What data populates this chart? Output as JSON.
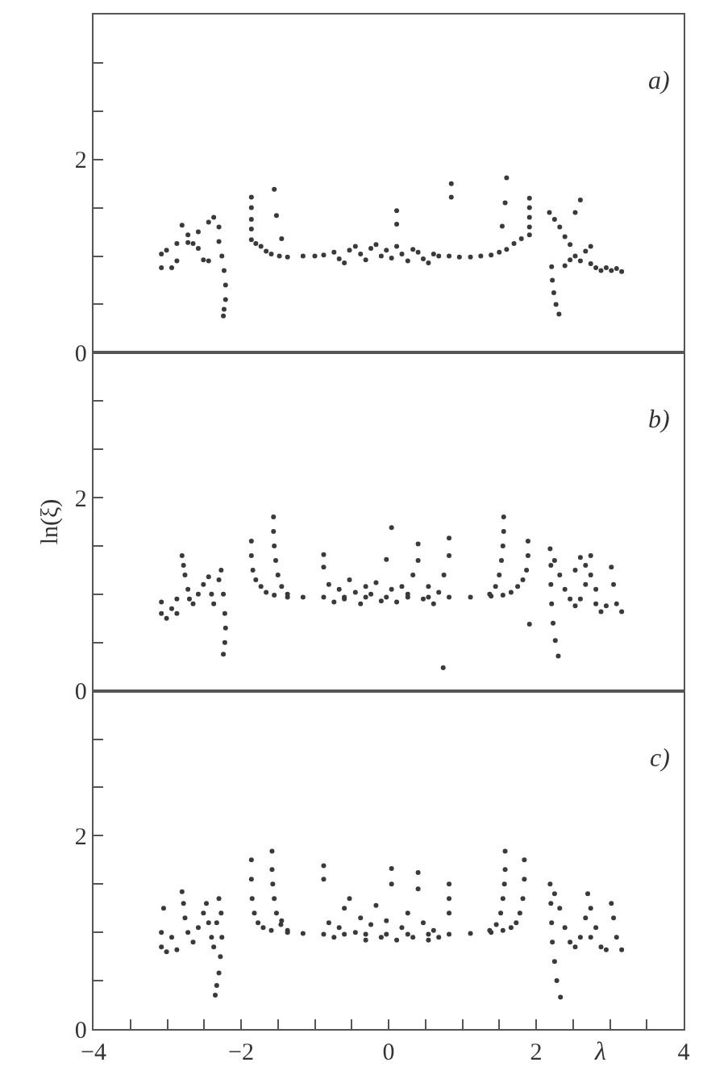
{
  "chart_data": [
    {
      "type": "scatter",
      "color": "#3a3a3a",
      "marker": "circle",
      "annotations": [
        "a)"
      ],
      "xlim": [
        -4,
        4
      ],
      "ylim": [
        0,
        3.5
      ],
      "tick_labels": "y",
      "yticks": [
        0,
        {
          "value": 0.5,
          "label": null
        },
        {
          "value": 1,
          "label": null
        },
        {
          "value": 1.5,
          "label": null
        },
        2,
        {
          "value": 2.5,
          "label": null
        },
        {
          "value": 3,
          "label": null
        }
      ],
      "x": [
        -3.08,
        -3.08,
        -3.01,
        -2.94,
        -2.87,
        -2.87,
        -2.8,
        -2.72,
        -2.72,
        -2.65,
        -2.58,
        -2.58,
        -2.51,
        -2.44,
        -2.44,
        -2.37,
        -2.3,
        -2.3,
        -2.26,
        -2.23,
        -2.21,
        -2.21,
        -2.23,
        -2.24,
        -1.86,
        -1.86,
        -1.86,
        -1.86,
        -1.86,
        -1.8,
        -1.73,
        -1.66,
        -1.59,
        -1.48,
        -1.37,
        -1.16,
        -1.0,
        -0.88,
        -0.74,
        -0.67,
        -0.6,
        -0.53,
        -0.45,
        -0.38,
        -0.31,
        -0.24,
        -0.17,
        -0.1,
        -0.03,
        0.04,
        0.11,
        0.18,
        0.26,
        0.33,
        0.4,
        0.47,
        0.54,
        0.61,
        0.68,
        0.82,
        0.96,
        1.11,
        1.25,
        1.39,
        1.5,
        1.6,
        1.7,
        1.8,
        1.91,
        1.91,
        1.91,
        1.91,
        1.91,
        -1.55,
        -1.52,
        -1.45,
        0.11,
        0.11,
        0.85,
        0.85,
        1.6,
        1.58,
        1.54,
        2.21,
        2.22,
        2.24,
        2.27,
        2.31,
        2.18,
        2.25,
        2.32,
        2.39,
        2.46,
        2.53,
        2.6,
        2.67,
        2.6,
        2.53,
        2.74,
        2.74,
        2.81,
        2.88,
        2.95,
        3.02,
        3.09,
        3.16,
        2.39,
        2.46
      ],
      "values": [
        1.02,
        0.88,
        1.06,
        0.88,
        0.95,
        1.13,
        1.32,
        1.14,
        1.22,
        1.13,
        1.25,
        1.08,
        0.96,
        0.95,
        1.35,
        1.4,
        1.3,
        1.15,
        1.0,
        0.85,
        0.7,
        0.55,
        0.45,
        0.38,
        1.61,
        1.5,
        1.38,
        1.28,
        1.17,
        1.13,
        1.1,
        1.05,
        1.02,
        1.0,
        0.99,
        1.0,
        1.0,
        1.01,
        1.04,
        0.97,
        0.93,
        1.06,
        1.1,
        1.02,
        0.96,
        1.08,
        1.12,
        1.0,
        1.06,
        0.98,
        1.1,
        1.02,
        0.95,
        1.07,
        1.04,
        0.97,
        0.93,
        1.02,
        1.0,
        1.0,
        0.99,
        0.99,
        1.0,
        1.01,
        1.04,
        1.07,
        1.13,
        1.18,
        1.22,
        1.3,
        1.4,
        1.5,
        1.6,
        1.69,
        1.42,
        1.18,
        1.47,
        1.33,
        1.75,
        1.61,
        1.81,
        1.55,
        1.31,
        0.89,
        0.75,
        0.62,
        0.5,
        0.4,
        1.45,
        1.38,
        1.3,
        1.2,
        1.12,
        1.0,
        0.95,
        1.05,
        1.58,
        1.45,
        1.1,
        0.92,
        0.88,
        0.85,
        0.88,
        0.85,
        0.87,
        0.84,
        0.9,
        0.96
      ]
    },
    {
      "type": "scatter",
      "color": "#3a3a3a",
      "marker": "circle",
      "annotations": [
        "b)"
      ],
      "ylabel": "ln(ξ)",
      "xlim": [
        -4,
        4
      ],
      "ylim": [
        0,
        3.5
      ],
      "tick_labels": "y",
      "yticks": [
        0,
        {
          "value": 0.5,
          "label": null
        },
        {
          "value": 1,
          "label": null
        },
        {
          "value": 1.5,
          "label": null
        },
        2,
        {
          "value": 2.5,
          "label": null
        },
        {
          "value": 3,
          "label": null
        }
      ],
      "x": [
        -3.08,
        -3.08,
        -3.01,
        -2.94,
        -2.87,
        -2.87,
        -2.8,
        -2.78,
        -2.76,
        -2.72,
        -2.7,
        -2.65,
        -2.58,
        -2.51,
        -2.44,
        -2.4,
        -2.37,
        -2.3,
        -2.27,
        -2.24,
        -2.22,
        -2.21,
        -2.22,
        -2.24,
        -1.86,
        -1.86,
        -1.84,
        -1.8,
        -1.73,
        -1.66,
        -1.55,
        -1.37,
        -1.16,
        -0.88,
        -0.6,
        -0.31,
        -0.03,
        0.26,
        0.54,
        0.82,
        1.11,
        1.39,
        1.55,
        1.66,
        1.75,
        1.82,
        1.87,
        1.89,
        1.89,
        -1.56,
        -1.56,
        -1.55,
        -1.53,
        -1.5,
        -1.45,
        -1.37,
        1.37,
        1.45,
        1.5,
        1.53,
        1.55,
        1.56,
        1.56,
        -0.88,
        -0.88,
        -0.81,
        -0.74,
        -0.67,
        -0.6,
        -0.53,
        -0.45,
        -0.38,
        -0.31,
        -0.24,
        -0.17,
        -0.1,
        -0.03,
        0.04,
        0.04,
        0.11,
        0.18,
        0.26,
        0.33,
        0.4,
        0.4,
        0.47,
        0.54,
        0.61,
        0.68,
        0.75,
        0.82,
        0.82,
        0.74,
        1.91,
        2.19,
        2.2,
        2.2,
        2.21,
        2.23,
        2.26,
        2.3,
        2.25,
        2.32,
        2.39,
        2.46,
        2.53,
        2.6,
        2.67,
        2.67,
        2.74,
        2.74,
        2.81,
        2.81,
        2.88,
        2.95,
        3.02,
        3.05,
        3.09,
        3.16,
        2.53,
        2.6
      ],
      "values": [
        0.92,
        0.8,
        0.75,
        0.85,
        0.8,
        0.95,
        1.4,
        1.3,
        1.2,
        1.05,
        0.95,
        0.9,
        1.0,
        1.1,
        1.18,
        1.0,
        0.9,
        1.15,
        1.25,
        1.0,
        0.8,
        0.65,
        0.5,
        0.38,
        1.55,
        1.4,
        1.25,
        1.15,
        1.08,
        1.02,
        0.99,
        0.97,
        0.97,
        0.97,
        0.97,
        0.97,
        0.97,
        0.97,
        0.97,
        0.97,
        0.97,
        0.98,
        0.99,
        1.02,
        1.08,
        1.15,
        1.25,
        1.4,
        1.55,
        1.8,
        1.65,
        1.5,
        1.35,
        1.2,
        1.08,
        1.0,
        1.0,
        1.08,
        1.2,
        1.35,
        1.5,
        1.65,
        1.8,
        1.41,
        1.28,
        1.1,
        0.92,
        1.05,
        0.95,
        1.15,
        1.02,
        0.9,
        1.08,
        1.0,
        1.12,
        0.93,
        1.36,
        1.05,
        1.69,
        0.92,
        1.08,
        1.0,
        1.2,
        1.52,
        1.35,
        0.95,
        1.08,
        0.9,
        1.02,
        1.2,
        1.58,
        1.4,
        0.24,
        0.69,
        1.47,
        1.3,
        1.1,
        0.9,
        0.7,
        0.52,
        0.36,
        1.35,
        1.2,
        1.05,
        0.95,
        0.88,
        0.95,
        1.1,
        1.3,
        1.4,
        1.2,
        1.05,
        0.9,
        0.82,
        0.88,
        1.28,
        1.1,
        0.9,
        0.82,
        1.25,
        1.38
      ]
    },
    {
      "type": "scatter",
      "color": "#3a3a3a",
      "marker": "circle",
      "annotations": [
        "c)"
      ],
      "xlabel": "λ",
      "xlim": [
        -4,
        4
      ],
      "ylim": [
        0,
        3.5
      ],
      "xticks": [
        -4,
        {
          "value": -3.5,
          "label": null
        },
        {
          "value": -3,
          "label": null
        },
        {
          "value": -2.5,
          "label": null
        },
        -2,
        {
          "value": -1.5,
          "label": null
        },
        {
          "value": -1,
          "label": null
        },
        {
          "value": -0.5,
          "label": null
        },
        0,
        {
          "value": 0.5,
          "label": null
        },
        {
          "value": 1,
          "label": null
        },
        {
          "value": 1.5,
          "label": null
        },
        2,
        {
          "value": 2.5,
          "label": null
        },
        {
          "value": 3,
          "label": null
        },
        {
          "value": 3.5,
          "label": null
        },
        4
      ],
      "yticks": [
        0,
        {
          "value": 0.5,
          "label": null
        },
        {
          "value": 1,
          "label": null
        },
        {
          "value": 1.5,
          "label": null
        },
        2,
        {
          "value": 2.5,
          "label": null
        },
        {
          "value": 3,
          "label": null
        }
      ],
      "x": [
        -3.08,
        -3.08,
        -3.05,
        -3.01,
        -2.94,
        -2.87,
        -2.8,
        -2.78,
        -2.76,
        -2.72,
        -2.65,
        -2.58,
        -2.51,
        -2.47,
        -2.44,
        -2.4,
        -2.37,
        -2.33,
        -2.3,
        -2.27,
        -2.26,
        -2.28,
        -2.3,
        -2.33,
        -2.35,
        -1.86,
        -1.86,
        -1.85,
        -1.82,
        -1.77,
        -1.7,
        -1.59,
        -1.37,
        -1.16,
        -0.88,
        -0.6,
        -0.31,
        -0.03,
        0.26,
        0.54,
        0.82,
        1.11,
        1.39,
        1.55,
        1.66,
        1.73,
        1.78,
        1.82,
        1.84,
        1.84,
        -1.58,
        -1.58,
        -1.57,
        -1.55,
        -1.52,
        -1.46,
        -1.37,
        1.37,
        1.46,
        1.52,
        1.55,
        1.57,
        1.58,
        1.58,
        -0.88,
        -0.88,
        -0.81,
        -0.74,
        -0.67,
        -0.6,
        -0.53,
        -0.45,
        -0.38,
        -0.31,
        -0.24,
        -0.17,
        -0.1,
        -0.03,
        0.04,
        0.04,
        0.11,
        0.18,
        0.26,
        0.33,
        0.4,
        0.4,
        0.47,
        0.54,
        0.61,
        0.68,
        0.82,
        0.82,
        0.82,
        -1.45,
        2.19,
        2.2,
        2.21,
        2.22,
        2.25,
        2.28,
        2.33,
        2.25,
        2.32,
        2.39,
        2.46,
        2.53,
        2.6,
        2.67,
        2.7,
        2.74,
        2.81,
        2.88,
        2.95,
        3.02,
        3.05,
        3.09,
        3.16,
        2.74
      ],
      "values": [
        0.85,
        1.0,
        1.25,
        0.8,
        0.95,
        0.82,
        1.42,
        1.3,
        1.15,
        1.0,
        0.9,
        1.05,
        1.2,
        1.3,
        1.1,
        0.95,
        0.85,
        1.1,
        1.35,
        1.2,
        0.95,
        0.75,
        0.58,
        0.45,
        0.35,
        1.75,
        1.55,
        1.35,
        1.2,
        1.1,
        1.05,
        1.02,
        1.0,
        0.99,
        0.98,
        0.98,
        0.98,
        0.98,
        0.98,
        0.98,
        0.98,
        0.99,
        1.0,
        1.02,
        1.05,
        1.1,
        1.2,
        1.35,
        1.55,
        1.75,
        1.84,
        1.65,
        1.5,
        1.35,
        1.2,
        1.08,
        1.02,
        1.02,
        1.08,
        1.2,
        1.35,
        1.5,
        1.65,
        1.84,
        1.69,
        1.55,
        1.1,
        0.95,
        1.05,
        1.25,
        1.35,
        1.0,
        1.15,
        0.92,
        1.08,
        1.28,
        0.95,
        1.12,
        1.5,
        1.66,
        0.92,
        1.05,
        1.2,
        0.95,
        1.62,
        1.45,
        1.1,
        0.92,
        1.02,
        0.95,
        1.5,
        1.35,
        1.2,
        1.12,
        1.5,
        1.3,
        1.1,
        0.9,
        0.7,
        0.5,
        0.33,
        1.4,
        1.25,
        1.05,
        0.9,
        0.85,
        0.95,
        1.15,
        1.4,
        1.25,
        1.05,
        0.85,
        0.82,
        1.3,
        1.15,
        0.95,
        0.82,
        0.95
      ]
    }
  ]
}
